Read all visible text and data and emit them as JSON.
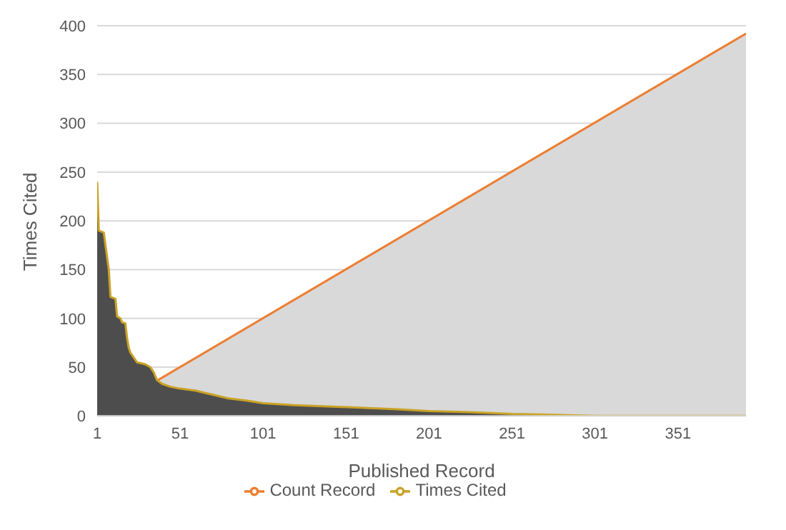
{
  "chart_data": {
    "type": "area",
    "xlabel": "Published Record",
    "ylabel": "Times Cited",
    "xlim": [
      1,
      392
    ],
    "xticks": [
      1,
      51,
      101,
      151,
      201,
      251,
      301,
      351
    ],
    "ylim": [
      0,
      400
    ],
    "yticks": [
      0,
      50,
      100,
      150,
      200,
      250,
      300,
      350,
      400
    ],
    "grid": "y",
    "legend": "bottom",
    "series": [
      {
        "name": "Times Cited",
        "color": "#c9a227",
        "x": [
          1,
          2,
          5,
          6,
          8,
          9,
          12,
          13,
          15,
          16,
          18,
          19,
          20,
          21,
          23,
          25,
          30,
          33,
          35,
          37,
          40,
          45,
          51,
          60,
          65,
          70,
          80,
          90,
          101,
          120,
          151,
          180,
          201,
          225,
          251,
          280,
          301,
          392
        ],
        "values": [
          240,
          190,
          188,
          175,
          150,
          122,
          120,
          102,
          100,
          96,
          95,
          80,
          70,
          65,
          60,
          55,
          53,
          50,
          45,
          37,
          33,
          30,
          28,
          26,
          24,
          22,
          18,
          16,
          13,
          11,
          9,
          7,
          5,
          4,
          2,
          1,
          0,
          0
        ]
      },
      {
        "name": "Count Record",
        "color": "#ed7d31",
        "x": [
          1,
          392
        ],
        "values": [
          0,
          392
        ]
      }
    ]
  }
}
